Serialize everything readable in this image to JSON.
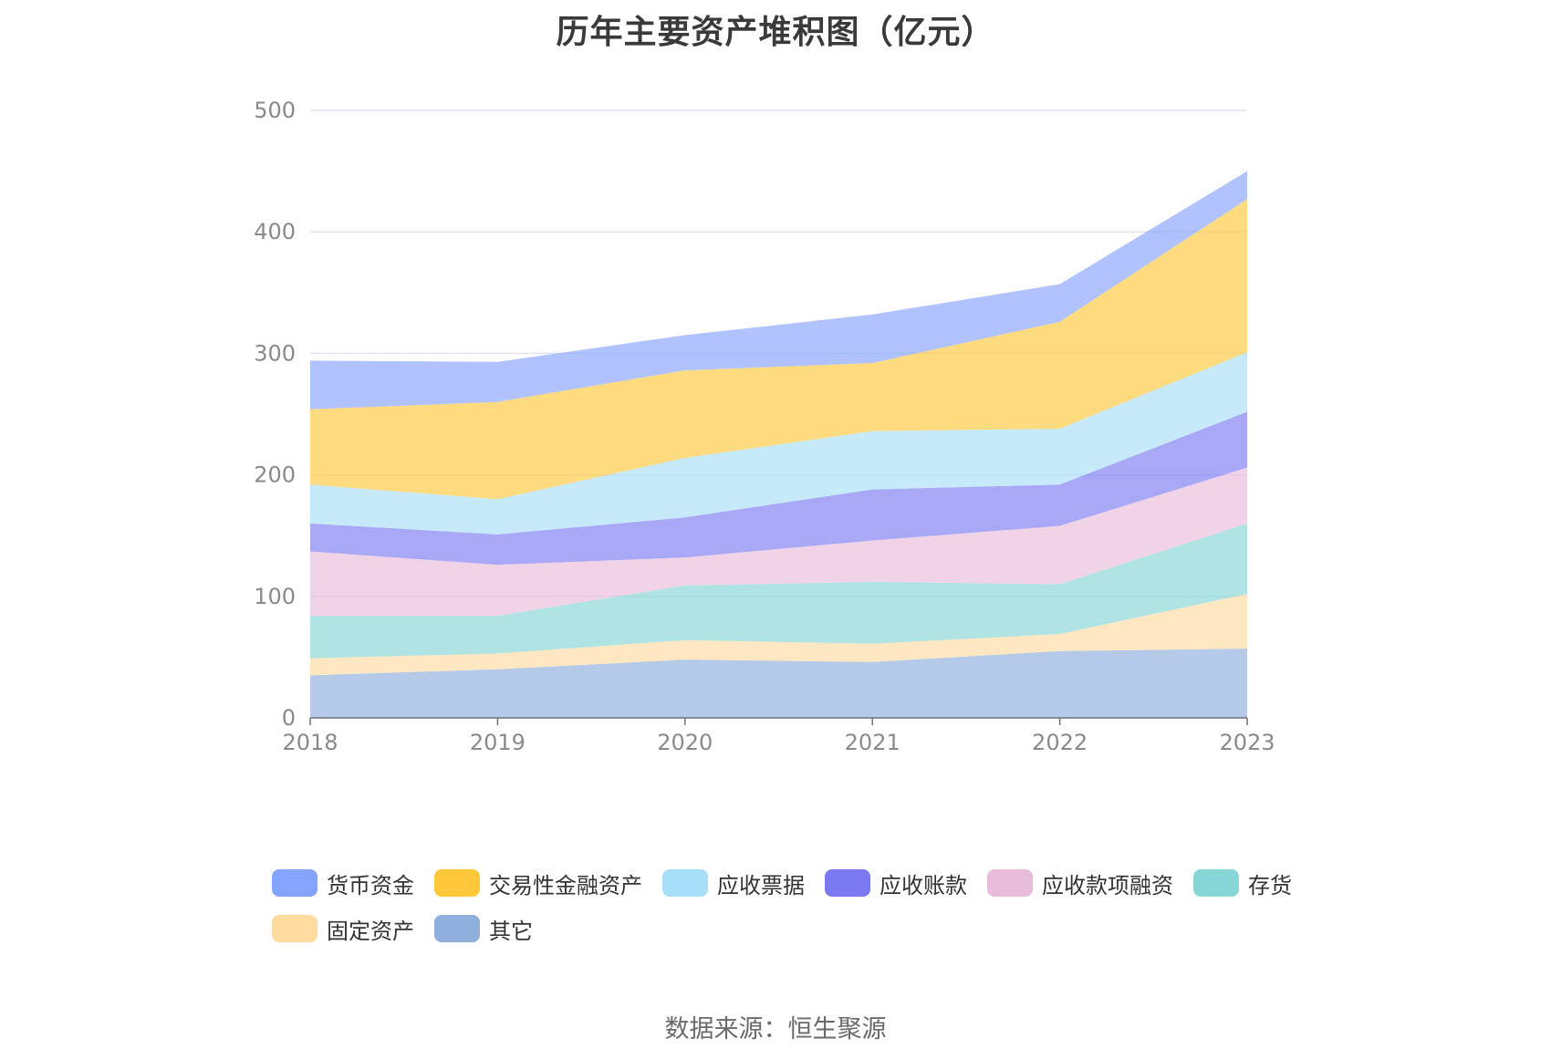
{
  "title": "历年主要资产堆积图（亿元）",
  "source": "数据来源：恒生聚源",
  "chart_data": {
    "type": "area",
    "stacked": true,
    "title": "历年主要资产堆积图（亿元）",
    "x": [
      "2018",
      "2019",
      "2020",
      "2021",
      "2022",
      "2023"
    ],
    "ylim": [
      0,
      500
    ],
    "yticks": [
      0,
      100,
      200,
      300,
      400,
      500
    ],
    "grid": true,
    "legend_position": "bottom",
    "series": [
      {
        "name": "其它",
        "color": "#8eaedb",
        "values": [
          35,
          40,
          48,
          46,
          55,
          57
        ]
      },
      {
        "name": "固定资产",
        "color": "#ffdba0",
        "values": [
          14,
          13,
          16,
          15,
          14,
          45
        ]
      },
      {
        "name": "存货",
        "color": "#86d6d6",
        "values": [
          35,
          31,
          45,
          51,
          41,
          58
        ]
      },
      {
        "name": "应收款项融资",
        "color": "#e9bcdc",
        "values": [
          53,
          42,
          23,
          34,
          48,
          46
        ]
      },
      {
        "name": "应收账款",
        "color": "#7a79f2",
        "values": [
          23,
          25,
          33,
          42,
          34,
          46
        ]
      },
      {
        "name": "应收票据",
        "color": "#a7dff8",
        "values": [
          32,
          29,
          49,
          48,
          46,
          49
        ]
      },
      {
        "name": "交易性金融资产",
        "color": "#ffc83a",
        "values": [
          62,
          80,
          72,
          56,
          88,
          126
        ]
      },
      {
        "name": "货币资金",
        "color": "#86a3fd",
        "values": [
          40,
          33,
          29,
          40,
          31,
          23
        ]
      }
    ],
    "legend_order": [
      "货币资金",
      "交易性金融资产",
      "应收票据",
      "应收账款",
      "应收款项融资",
      "存货",
      "固定资产",
      "其它"
    ]
  }
}
